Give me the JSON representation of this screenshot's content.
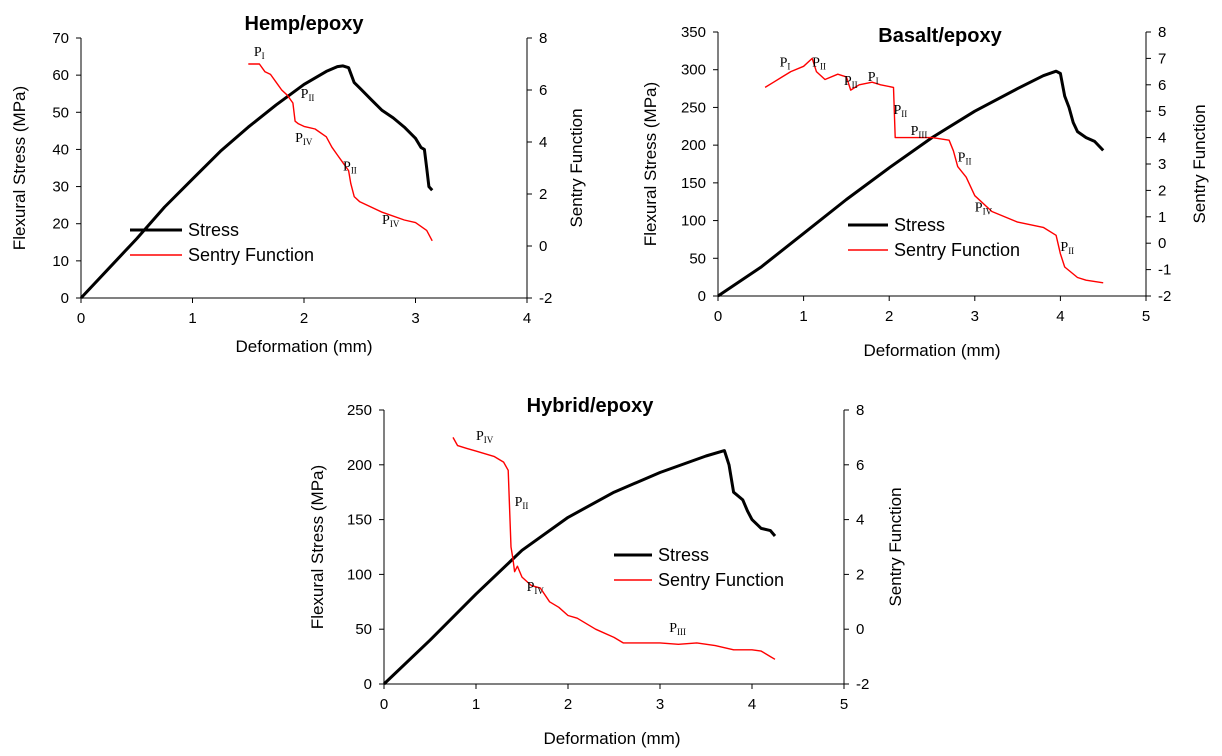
{
  "colors": {
    "stress": "#000000",
    "sentry": "#ff0000",
    "axis": "#000000"
  },
  "chart_data": [
    {
      "type": "line",
      "title": "Hemp/epoxy",
      "xlabel": "Deformation (mm)",
      "ylabel": "Flexural Stress (MPa)",
      "y2label": "Sentry Function",
      "xlim": [
        0,
        4
      ],
      "xticks": [
        0,
        1,
        2,
        3,
        4
      ],
      "ylim": [
        0,
        70
      ],
      "yticks": [
        0,
        10,
        20,
        30,
        40,
        50,
        60,
        70
      ],
      "y2lim": [
        -2,
        8
      ],
      "y2ticks": [
        -2,
        0,
        2,
        4,
        6,
        8
      ],
      "legend_position": "center-left",
      "series": [
        {
          "name": "Stress",
          "axis": "left",
          "x": [
            0,
            0.25,
            0.5,
            0.75,
            1.0,
            1.25,
            1.5,
            1.75,
            2.0,
            2.2,
            2.3,
            2.35,
            2.4,
            2.45,
            2.5,
            2.6,
            2.7,
            2.8,
            2.9,
            3.0,
            3.05,
            3.08,
            3.1,
            3.12,
            3.15
          ],
          "y": [
            0,
            8,
            16,
            24.5,
            32,
            39.5,
            46,
            52,
            57.5,
            61,
            62.3,
            62.5,
            62,
            58,
            56.5,
            53.5,
            50.5,
            48.5,
            46,
            43,
            40.5,
            40,
            35,
            30,
            29
          ]
        },
        {
          "name": "Sentry Function",
          "axis": "right",
          "x": [
            1.5,
            1.6,
            1.65,
            1.7,
            1.75,
            1.8,
            1.85,
            1.9,
            1.92,
            1.95,
            2.0,
            2.1,
            2.2,
            2.25,
            2.3,
            2.35,
            2.4,
            2.42,
            2.45,
            2.5,
            2.7,
            2.9,
            3.0,
            3.1,
            3.15
          ],
          "y": [
            7.0,
            7.0,
            6.7,
            6.6,
            6.3,
            6.0,
            5.8,
            5.5,
            4.8,
            4.7,
            4.6,
            4.5,
            4.2,
            3.8,
            3.5,
            3.2,
            2.9,
            2.4,
            1.9,
            1.7,
            1.3,
            1.0,
            0.9,
            0.6,
            0.2
          ]
        }
      ],
      "annotations": [
        {
          "text": "P",
          "sub": "I",
          "x": 1.55,
          "y2": 7.3
        },
        {
          "text": "P",
          "sub": "II",
          "x": 1.97,
          "y2": 5.7
        },
        {
          "text": "P",
          "sub": "IV",
          "x": 1.92,
          "y2": 4.0
        },
        {
          "text": "P",
          "sub": "II",
          "x": 2.35,
          "y2": 2.9
        },
        {
          "text": "P",
          "sub": "IV",
          "x": 2.7,
          "y2": 0.85
        }
      ]
    },
    {
      "type": "line",
      "title": "Basalt/epoxy",
      "xlabel": "Deformation (mm)",
      "ylabel": "Flexural Stress (MPa)",
      "y2label": "Sentry Function",
      "xlim": [
        0,
        5
      ],
      "xticks": [
        0,
        1,
        2,
        3,
        4,
        5
      ],
      "ylim": [
        0,
        350
      ],
      "yticks": [
        0,
        50,
        100,
        150,
        200,
        250,
        300,
        350
      ],
      "y2lim": [
        -2,
        8
      ],
      "y2ticks": [
        -2,
        -1,
        0,
        1,
        2,
        3,
        4,
        5,
        6,
        7,
        8
      ],
      "legend_position": "bottom-center",
      "series": [
        {
          "name": "Stress",
          "axis": "left",
          "x": [
            0,
            0.5,
            1.0,
            1.5,
            2.0,
            2.5,
            3.0,
            3.5,
            3.8,
            3.95,
            4.0,
            4.05,
            4.1,
            4.15,
            4.2,
            4.3,
            4.4,
            4.5
          ],
          "y": [
            0,
            38,
            83,
            128,
            170,
            210,
            245,
            275,
            292,
            298,
            295,
            265,
            250,
            230,
            218,
            210,
            205,
            193
          ]
        },
        {
          "name": "Sentry Function",
          "axis": "right",
          "x": [
            0.55,
            0.65,
            0.75,
            0.85,
            1.0,
            1.1,
            1.15,
            1.25,
            1.4,
            1.5,
            1.55,
            1.6,
            1.65,
            1.8,
            1.9,
            2.05,
            2.07,
            2.2,
            2.5,
            2.7,
            2.75,
            2.8,
            2.9,
            3.0,
            3.2,
            3.5,
            3.8,
            3.95,
            4.0,
            4.05,
            4.2,
            4.3,
            4.5
          ],
          "y": [
            5.9,
            6.1,
            6.3,
            6.5,
            6.7,
            7.0,
            6.5,
            6.2,
            6.4,
            6.3,
            5.8,
            5.9,
            6.0,
            6.1,
            6.0,
            5.9,
            4.0,
            4.0,
            4.0,
            3.9,
            3.5,
            2.9,
            2.5,
            1.8,
            1.2,
            0.8,
            0.6,
            0.3,
            -0.4,
            -0.9,
            -1.3,
            -1.4,
            -1.5
          ]
        }
      ],
      "annotations": [
        {
          "text": "P",
          "sub": "I",
          "x": 0.72,
          "y2": 6.7
        },
        {
          "text": "P",
          "sub": "II",
          "x": 1.1,
          "y2": 6.7
        },
        {
          "text": "P",
          "sub": "II",
          "x": 1.47,
          "y2": 6.0
        },
        {
          "text": "P",
          "sub": "I",
          "x": 1.75,
          "y2": 6.15
        },
        {
          "text": "P",
          "sub": "II",
          "x": 2.05,
          "y2": 4.9
        },
        {
          "text": "P",
          "sub": "III",
          "x": 2.25,
          "y2": 4.1
        },
        {
          "text": "P",
          "sub": "II",
          "x": 2.8,
          "y2": 3.1
        },
        {
          "text": "P",
          "sub": "IV",
          "x": 3.0,
          "y2": 1.2
        },
        {
          "text": "P",
          "sub": "II",
          "x": 4.0,
          "y2": -0.3
        }
      ]
    },
    {
      "type": "line",
      "title": "Hybrid/epoxy",
      "xlabel": "Deformation (mm)",
      "ylabel": "Flexural Stress (MPa)",
      "y2label": "Sentry Function",
      "xlim": [
        0,
        5
      ],
      "xticks": [
        0,
        1,
        2,
        3,
        4,
        5
      ],
      "ylim": [
        0,
        250
      ],
      "yticks": [
        0,
        50,
        100,
        150,
        200,
        250
      ],
      "y2lim": [
        -2,
        8
      ],
      "y2ticks": [
        -2,
        0,
        2,
        4,
        6,
        8
      ],
      "legend_position": "center-right",
      "series": [
        {
          "name": "Stress",
          "axis": "left",
          "x": [
            0,
            0.5,
            1.0,
            1.5,
            2.0,
            2.5,
            3.0,
            3.5,
            3.7,
            3.75,
            3.8,
            3.9,
            3.95,
            4.0,
            4.1,
            4.2,
            4.25
          ],
          "y": [
            0,
            40,
            82,
            122,
            152,
            175,
            193,
            208,
            213,
            200,
            175,
            168,
            158,
            150,
            142,
            140,
            135
          ]
        },
        {
          "name": "Sentry Function",
          "axis": "right",
          "x": [
            0.75,
            0.8,
            0.9,
            1.0,
            1.1,
            1.2,
            1.3,
            1.35,
            1.38,
            1.4,
            1.42,
            1.45,
            1.5,
            1.6,
            1.7,
            1.8,
            1.9,
            2.0,
            2.1,
            2.3,
            2.5,
            2.6,
            2.8,
            3.0,
            3.2,
            3.4,
            3.6,
            3.8,
            4.0,
            4.1,
            4.2,
            4.25
          ],
          "y": [
            7.0,
            6.7,
            6.6,
            6.5,
            6.4,
            6.3,
            6.1,
            5.8,
            3.0,
            2.6,
            2.1,
            2.3,
            1.9,
            1.6,
            1.5,
            1.0,
            0.8,
            0.5,
            0.4,
            0.0,
            -0.3,
            -0.5,
            -0.5,
            -0.5,
            -0.55,
            -0.5,
            -0.6,
            -0.75,
            -0.75,
            -0.8,
            -1.0,
            -1.1
          ]
        }
      ],
      "annotations": [
        {
          "text": "P",
          "sub": "IV",
          "x": 1.0,
          "y2": 6.9
        },
        {
          "text": "P",
          "sub": "II",
          "x": 1.42,
          "y2": 4.5
        },
        {
          "text": "P",
          "sub": "IV",
          "x": 1.55,
          "y2": 1.4
        },
        {
          "text": "P",
          "sub": "III",
          "x": 3.1,
          "y2": -0.1
        }
      ]
    }
  ]
}
